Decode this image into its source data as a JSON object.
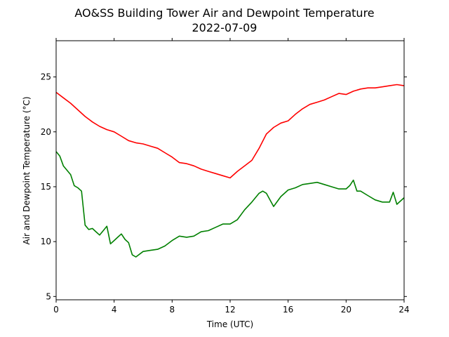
{
  "chart_data": {
    "type": "line",
    "title": "AO&SS Building Tower Air and Dewpoint Temperature",
    "subtitle": "2022-07-09",
    "xlabel": "Time (UTC)",
    "ylabel": "Air and Dewpoint Temperature (°C)",
    "xlim": [
      0,
      24
    ],
    "ylim": [
      4.7,
      28.3
    ],
    "xticks": [
      0,
      4,
      8,
      12,
      16,
      20,
      24
    ],
    "yticks": [
      5,
      10,
      15,
      20,
      25
    ],
    "grid": false,
    "colors": {
      "air": "#ff0000",
      "dewpoint": "#008000"
    },
    "series": [
      {
        "color": "#ff0000",
        "x": [
          0,
          0.5,
          1,
          1.5,
          2,
          2.5,
          3,
          3.5,
          4,
          4.5,
          5,
          5.5,
          6,
          6.5,
          7,
          7.5,
          8,
          8.5,
          9,
          9.5,
          10,
          10.5,
          11,
          11.5,
          12,
          12.5,
          13,
          13.5,
          14,
          14.5,
          15,
          15.5,
          16,
          16.5,
          17,
          17.5,
          18,
          18.5,
          19,
          19.5,
          20,
          20.5,
          21,
          21.5,
          22,
          22.5,
          23,
          23.5,
          24
        ],
        "y": [
          23.6,
          23.1,
          22.6,
          22.0,
          21.4,
          20.9,
          20.5,
          20.2,
          20.0,
          19.6,
          19.2,
          19.0,
          18.9,
          18.7,
          18.5,
          18.1,
          17.7,
          17.2,
          17.1,
          16.9,
          16.6,
          16.4,
          16.2,
          16.0,
          15.8,
          16.4,
          16.9,
          17.4,
          18.5,
          19.8,
          20.4,
          20.8,
          21.0,
          21.6,
          22.1,
          22.5,
          22.7,
          22.9,
          23.2,
          23.5,
          23.4,
          23.7,
          23.9,
          24.0,
          24.0,
          24.1,
          24.2,
          24.3,
          24.2
        ]
      },
      {
        "color": "#008000",
        "x": [
          0,
          0.25,
          0.5,
          0.75,
          1,
          1.25,
          1.5,
          1.75,
          2,
          2.25,
          2.5,
          2.75,
          3,
          3.25,
          3.5,
          3.75,
          4,
          4.25,
          4.5,
          4.75,
          5,
          5.25,
          5.5,
          6,
          6.5,
          7,
          7.5,
          8,
          8.5,
          9,
          9.5,
          10,
          10.5,
          11,
          11.5,
          12,
          12.5,
          13,
          13.5,
          14,
          14.25,
          14.5,
          15,
          15.5,
          16,
          16.5,
          17,
          17.5,
          18,
          18.5,
          19,
          19.5,
          20,
          20.25,
          20.5,
          20.75,
          21,
          21.5,
          22,
          22.5,
          23,
          23.25,
          23.5,
          24
        ],
        "y": [
          18.2,
          17.8,
          16.9,
          16.5,
          16.1,
          15.1,
          14.9,
          14.6,
          11.5,
          11.1,
          11.2,
          10.9,
          10.6,
          11.0,
          11.4,
          9.8,
          10.1,
          10.4,
          10.7,
          10.2,
          9.9,
          8.8,
          8.6,
          9.1,
          9.2,
          9.3,
          9.6,
          10.1,
          10.5,
          10.4,
          10.5,
          10.9,
          11.0,
          11.3,
          11.6,
          11.6,
          12.0,
          12.9,
          13.6,
          14.4,
          14.6,
          14.4,
          13.2,
          14.1,
          14.7,
          14.9,
          15.2,
          15.3,
          15.4,
          15.2,
          15.0,
          14.8,
          14.8,
          15.1,
          15.6,
          14.6,
          14.6,
          14.2,
          13.8,
          13.6,
          13.6,
          14.5,
          13.4,
          14.0
        ]
      }
    ]
  }
}
